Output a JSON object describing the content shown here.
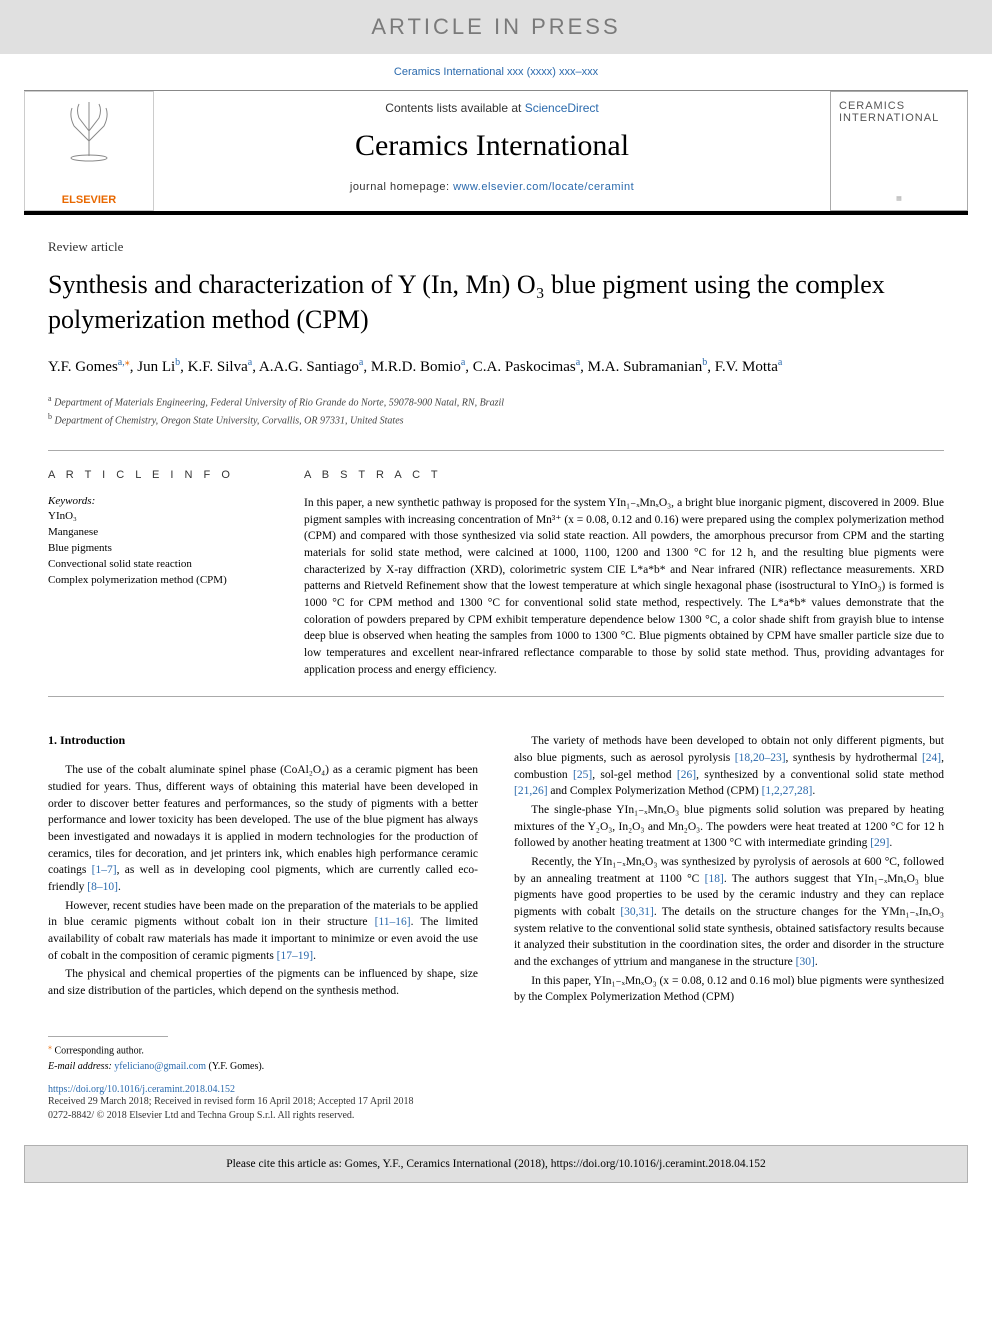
{
  "banner": "ARTICLE IN PRESS",
  "top_citation": "Ceramics International xxx (xxxx) xxx–xxx",
  "header": {
    "contents_text": "Contents lists available at ",
    "sciencedirect": "ScienceDirect",
    "journal_title": "Ceramics International",
    "homepage_label": "journal homepage: ",
    "homepage_url": "www.elsevier.com/locate/ceramint",
    "elsevier": "ELSEVIER",
    "cover_line1": "CERAMICS",
    "cover_line2": "INTERNATIONAL"
  },
  "article_type": "Review article",
  "title": "Synthesis and characterization of Y (In, Mn) O₃ blue pigment using the complex polymerization method (CPM)",
  "authors_html": "Y.F. Gomes<span class='aff'>a,</span><span class='corr'>⁎</span>, Jun Li<span class='aff'>b</span>, K.F. Silva<span class='aff'>a</span>, A.A.G. Santiago<span class='aff'>a</span>, M.R.D. Bomio<span class='aff'>a</span>, C.A. Paskocimas<span class='aff'>a</span>, M.A. Subramanian<span class='aff'>b</span>, F.V. Motta<span class='aff'>a</span>",
  "affiliations": {
    "a": "Department of Materials Engineering, Federal University of Rio Grande do Norte, 59078-900 Natal, RN, Brazil",
    "b": "Department of Chemistry, Oregon State University, Corvallis, OR 97331, United States"
  },
  "info_heading": "A R T I C L E   I N F O",
  "abstract_heading": "A B S T R A C T",
  "keywords_label": "Keywords:",
  "keywords": [
    "YInO₃",
    "Manganese",
    "Blue pigments",
    "Convectional solid state reaction",
    "Complex polymerization method (CPM)"
  ],
  "abstract": "In this paper, a new synthetic pathway is proposed for the system YIn₁₋ₓMnₓO₃, a bright blue inorganic pigment, discovered in 2009. Blue pigment samples with increasing concentration of Mn³⁺ (x = 0.08, 0.12 and 0.16) were prepared using the complex polymerization method (CPM) and compared with those synthesized via solid state reaction. All powders, the amorphous precursor from CPM and the starting materials for solid state method, were calcined at 1000, 1100, 1200 and 1300 °C for 12 h, and the resulting blue pigments were characterized by X-ray diffraction (XRD), colorimetric system CIE L*a*b* and Near infrared (NIR) reflectance measurements. XRD patterns and Rietveld Refinement show that the lowest temperature at which single hexagonal phase (isostructural to YInO₃) is formed is 1000 °C for CPM method and 1300 °C for conventional solid state method, respectively. The L*a*b* values demonstrate that the coloration of powders prepared by CPM exhibit temperature dependence below 1300 °C, a color shade shift from grayish blue to intense deep blue is observed when heating the samples from 1000 to 1300 °C. Blue pigments obtained by CPM have smaller particle size due to low temperatures and excellent near-infrared reflectance comparable to those by solid state method. Thus, providing advantages for application process and energy efficiency.",
  "body": {
    "intro_heading": "1. Introduction",
    "left_paras": [
      "The use of the cobalt aluminate spinel phase (CoAl₂O₄) as a ceramic pigment has been studied for years. Thus, different ways of obtaining this material have been developed in order to discover better features and performances, so the study of pigments with a better performance and lower toxicity has been developed. The use of the blue pigment has always been investigated and nowadays it is applied in modern technologies for the production of ceramics, tiles for decoration, and jet printers ink, which enables high performance ceramic coatings <span class='link'>[1–7]</span>, as well as in developing cool pigments, which are currently called eco-friendly <span class='link'>[8–10]</span>.",
      "However, recent studies have been made on the preparation of the materials to be applied in blue ceramic pigments without cobalt ion in their structure <span class='link'>[11–16]</span>. The limited availability of cobalt raw materials has made it important to minimize or even avoid the use of cobalt in the composition of ceramic pigments <span class='link'>[17–19]</span>.",
      "The physical and chemical properties of the pigments can be influenced by shape, size and size distribution of the particles, which depend on the synthesis method."
    ],
    "right_paras": [
      "The variety of methods have been developed to obtain not only different pigments, but also blue pigments, such as aerosol pyrolysis <span class='link'>[18,20–23]</span>, synthesis by hydrothermal <span class='link'>[24]</span>, combustion <span class='link'>[25]</span>, sol-gel method <span class='link'>[26]</span>, synthesized by a conventional solid state method <span class='link'>[21,26]</span> and Complex Polymerization Method (CPM) <span class='link'>[1,2,27,28]</span>.",
      "The single-phase YIn₁₋ₓMnₓO₃ blue pigments solid solution was prepared by heating mixtures of the Y₂O₃, In₂O₃ and Mn₂O₃. The powders were heat treated at 1200 °C for 12 h followed by another heating treatment at 1300 °C with intermediate grinding <span class='link'>[29]</span>.",
      "Recently, the YIn₁₋ₓMnₓO₃ was synthesized by pyrolysis of aerosols at 600 °C, followed by an annealing treatment at 1100 °C <span class='link'>[18]</span>. The authors suggest that YIn₁₋ₓMnₓO₃ blue pigments have good properties to be used by the ceramic industry and they can replace pigments with cobalt <span class='link'>[30,31]</span>. The details on the structure changes for the YMn₁₋ₓInₓO₃ system relative to the conventional solid state synthesis, obtained satisfactory results because it analyzed their substitution in the coordination sites, the order and disorder in the structure and the exchanges of yttrium and manganese in the structure <span class='link'>[30]</span>.",
      "In this paper, YIn₁₋ₓMnₓO₃ (x = 0.08, 0.12 and 0.16 mol) blue pigments were synthesized by the Complex Polymerization Method (CPM)"
    ]
  },
  "footnotes": {
    "corr": "Corresponding author.",
    "email_label": "E-mail address: ",
    "email": "yfeliciano@gmail.com",
    "email_name": " (Y.F. Gomes)."
  },
  "doi": "https://doi.org/10.1016/j.ceramint.2018.04.152",
  "history": "Received 29 March 2018; Received in revised form 16 April 2018; Accepted 17 April 2018",
  "copyright": "0272-8842/ © 2018 Elsevier Ltd and Techna Group S.r.l. All rights reserved.",
  "cite_box": "Please cite this article as: Gomes, Y.F., Ceramics International (2018), https://doi.org/10.1016/j.ceramint.2018.04.152",
  "colors": {
    "banner_bg": "#e0e0e0",
    "banner_text": "#7a7a7a",
    "link": "#2b6aad",
    "elsevier_orange": "#e86800"
  }
}
